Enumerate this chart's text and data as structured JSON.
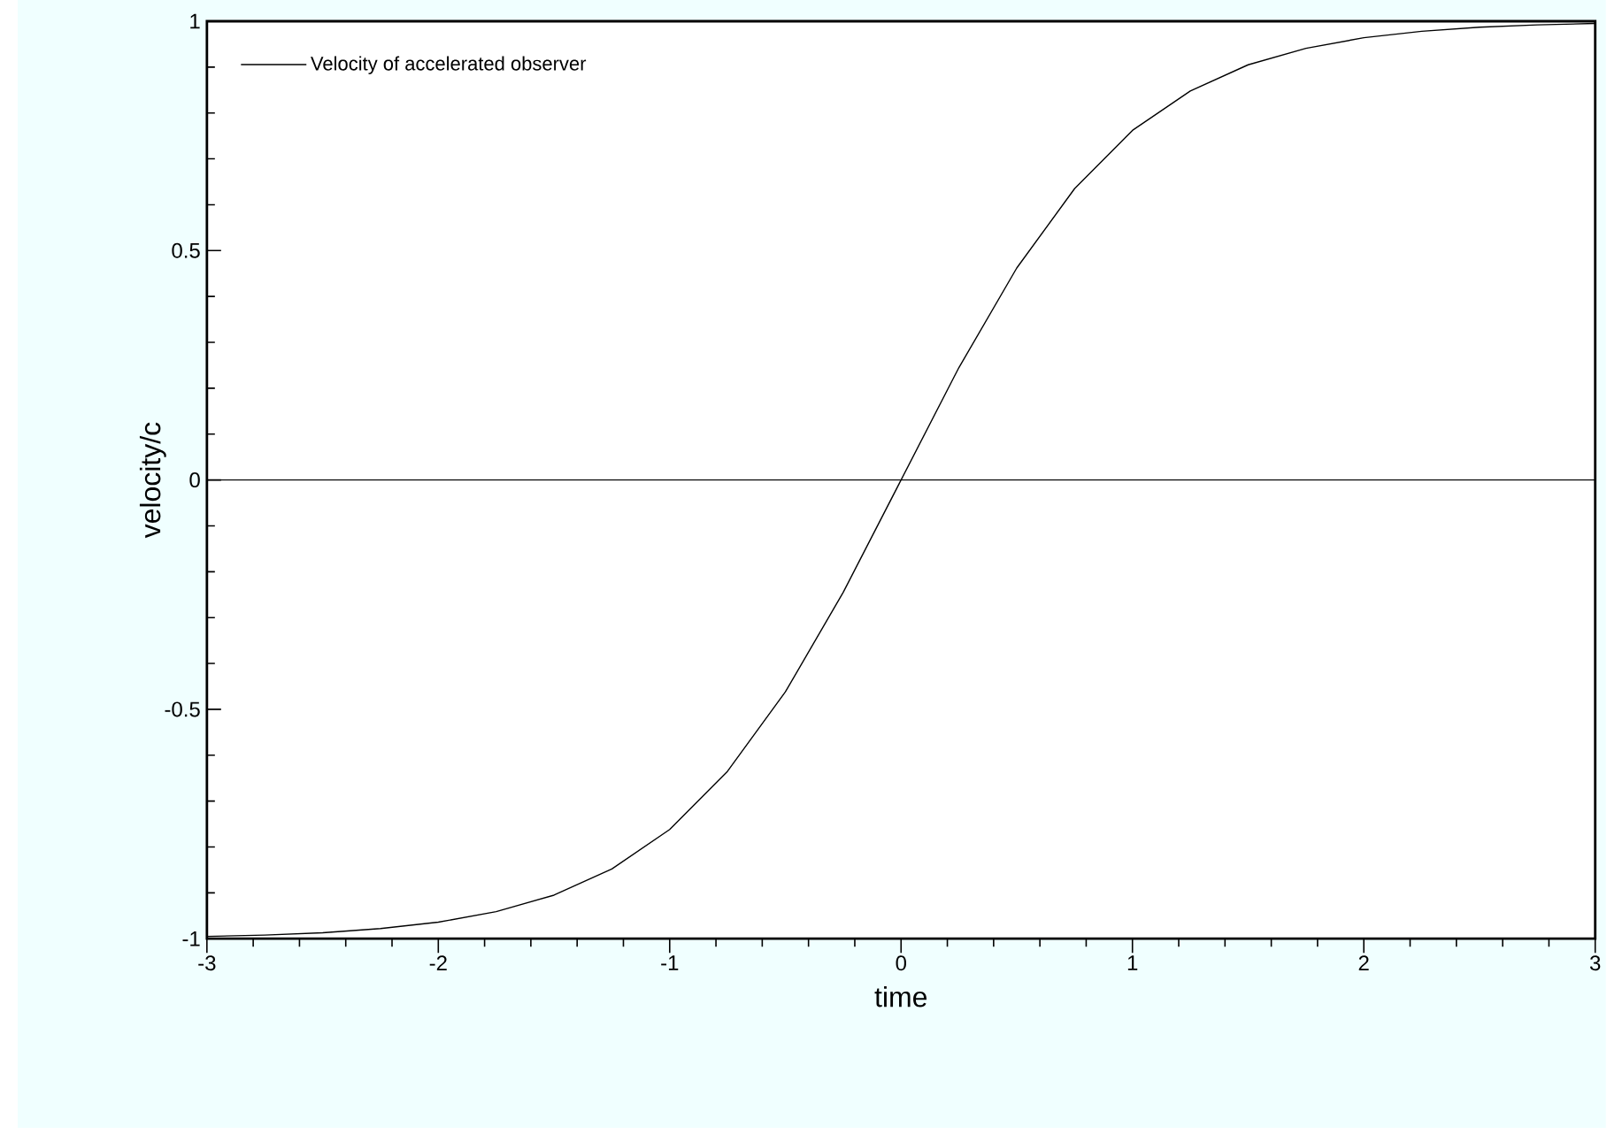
{
  "chart_data": {
    "type": "line",
    "xlabel": "time",
    "ylabel": "velocity/c",
    "legend": "top left",
    "xlim": [
      -3,
      3
    ],
    "ylim": [
      -1,
      1
    ],
    "xticks": [
      -3,
      -2,
      -1,
      0,
      1,
      2,
      3
    ],
    "yticks": [
      -1,
      {
        "value": -0.5,
        "label": "-0.5"
      },
      0,
      {
        "value": 0.5,
        "label": "0.5"
      },
      1
    ],
    "ref_lines": [
      {
        "axis": "y",
        "value": 0,
        "color": "#000000"
      }
    ],
    "series": [
      {
        "name": "Velocity of accelerated observer",
        "color": "#000000",
        "line_style": "solid",
        "x": [
          -3,
          -2.75,
          -2.5,
          -2.25,
          -2,
          -1.75,
          -1.5,
          -1.25,
          -1,
          -0.75,
          -0.5,
          -0.25,
          0,
          0.25,
          0.5,
          0.75,
          1,
          1.25,
          1.5,
          1.75,
          2,
          2.25,
          2.5,
          2.75,
          3
        ],
        "values": [
          -0.995,
          -0.992,
          -0.987,
          -0.978,
          -0.964,
          -0.941,
          -0.905,
          -0.848,
          -0.762,
          -0.635,
          -0.462,
          -0.245,
          0,
          0.245,
          0.462,
          0.635,
          0.762,
          0.848,
          0.905,
          0.941,
          0.964,
          0.978,
          0.987,
          0.992,
          0.995
        ]
      }
    ]
  }
}
